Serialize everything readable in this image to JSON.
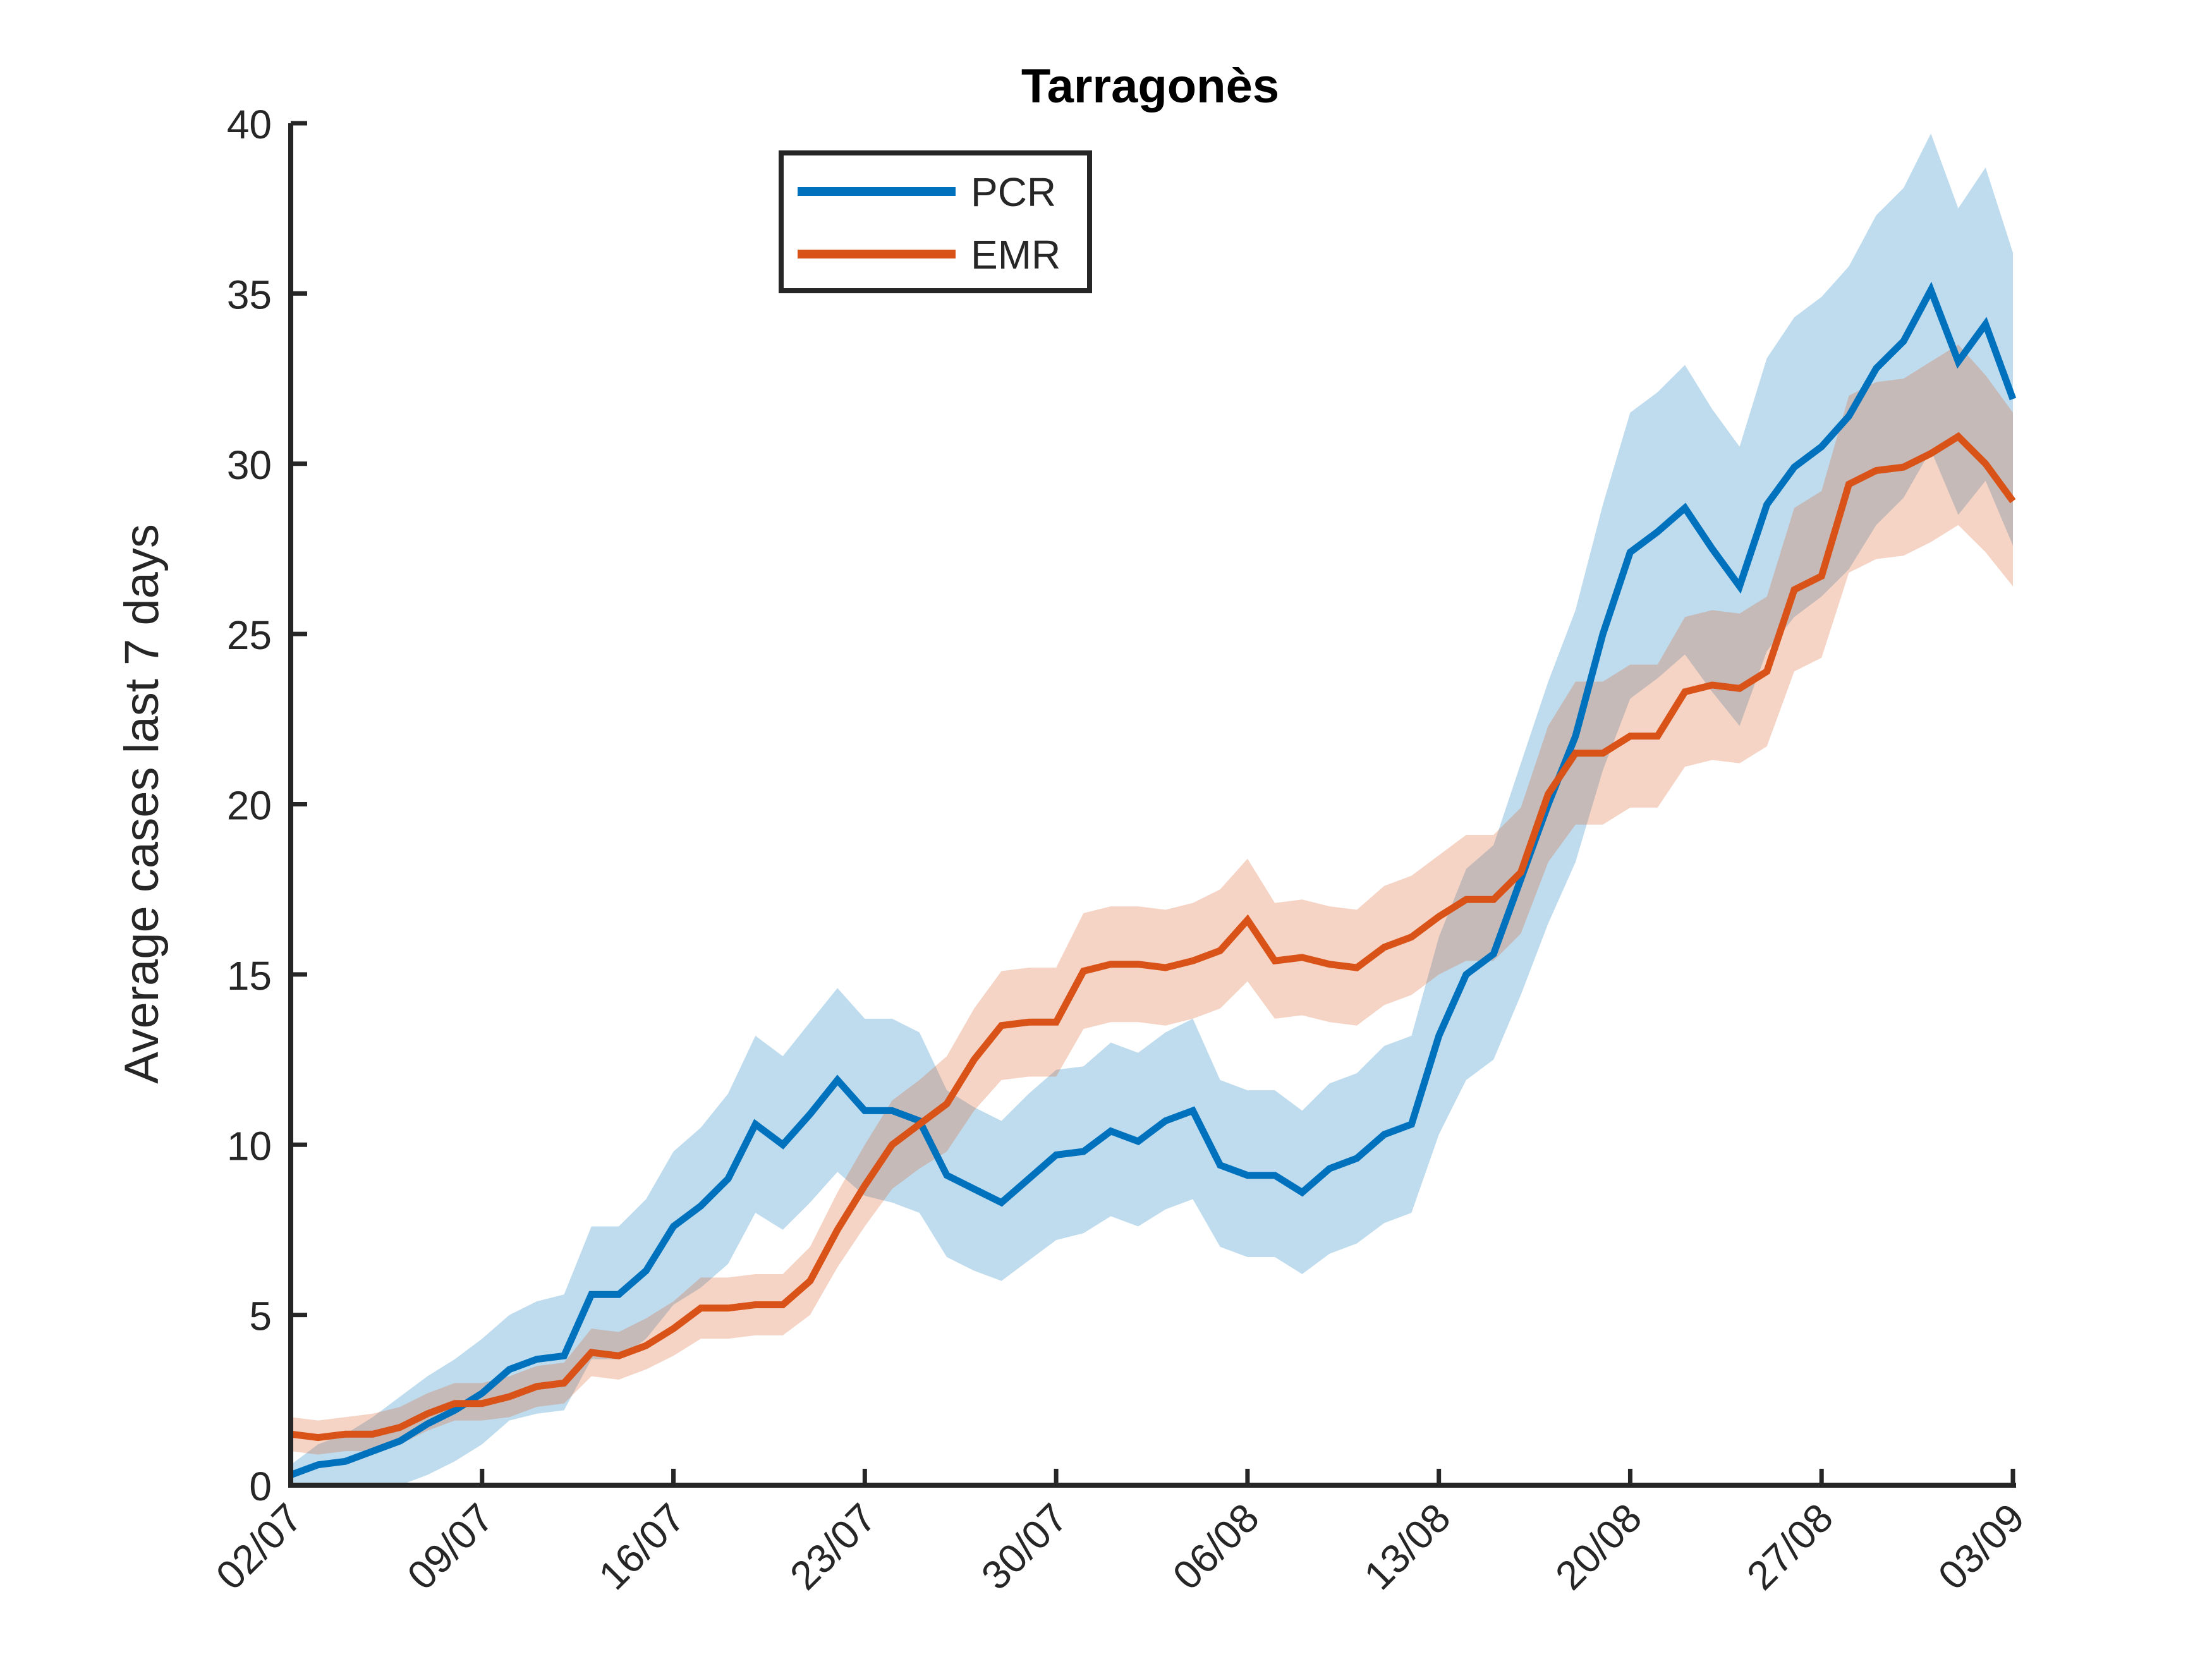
{
  "chart_data": {
    "type": "line",
    "title": "Tarragonès",
    "xlabel": "",
    "ylabel": "Average cases last 7 days",
    "ylim": [
      0,
      40
    ],
    "yticks": [
      0,
      5,
      10,
      15,
      20,
      25,
      30,
      35,
      40
    ],
    "xlim": [
      0,
      63
    ],
    "xticks": [
      {
        "pos": 0,
        "label": "02/07"
      },
      {
        "pos": 7,
        "label": "09/07"
      },
      {
        "pos": 14,
        "label": "16/07"
      },
      {
        "pos": 21,
        "label": "23/07"
      },
      {
        "pos": 28,
        "label": "30/07"
      },
      {
        "pos": 35,
        "label": "06/08"
      },
      {
        "pos": 42,
        "label": "13/08"
      },
      {
        "pos": 49,
        "label": "20/08"
      },
      {
        "pos": 56,
        "label": "27/08"
      },
      {
        "pos": 63,
        "label": "03/09"
      }
    ],
    "legend": {
      "position": "top-left",
      "entries": [
        "PCR",
        "EMR"
      ]
    },
    "series": [
      {
        "name": "PCR",
        "color": "#0072BD",
        "values": [
          0.3,
          0.6,
          0.7,
          1.0,
          1.3,
          1.8,
          2.2,
          2.7,
          3.4,
          3.7,
          3.8,
          5.6,
          5.6,
          6.3,
          7.6,
          8.2,
          9.0,
          10.6,
          10.0,
          10.9,
          11.9,
          11.0,
          11.0,
          10.7,
          9.1,
          8.7,
          8.3,
          9.0,
          9.7,
          9.8,
          10.4,
          10.1,
          10.7,
          11.0,
          9.4,
          9.1,
          9.1,
          8.6,
          9.3,
          9.6,
          10.3,
          10.6,
          13.2,
          15.0,
          15.6,
          17.8,
          20.0,
          22.0,
          25.0,
          27.4,
          28.0,
          28.7,
          27.5,
          26.4,
          28.8,
          29.9,
          30.5,
          31.4,
          32.8,
          33.6,
          35.1,
          33.0,
          34.1,
          31.9
        ],
        "lower": [
          0,
          0,
          0,
          0,
          0,
          0.3,
          0.7,
          1.2,
          1.9,
          2.1,
          2.2,
          3.7,
          3.7,
          4.3,
          5.3,
          5.8,
          6.5,
          8.0,
          7.5,
          8.3,
          9.2,
          8.5,
          8.3,
          8.0,
          6.7,
          6.3,
          6.0,
          6.6,
          7.2,
          7.4,
          7.9,
          7.6,
          8.1,
          8.4,
          7.0,
          6.7,
          6.7,
          6.2,
          6.8,
          7.1,
          7.7,
          8.0,
          10.3,
          11.9,
          12.5,
          14.4,
          16.5,
          18.3,
          21.0,
          23.1,
          23.7,
          24.4,
          23.3,
          22.3,
          24.5,
          25.5,
          26.1,
          26.9,
          28.2,
          29.0,
          30.4,
          28.5,
          29.5,
          27.6
        ],
        "upper": [
          0.6,
          1.2,
          1.5,
          2.0,
          2.6,
          3.2,
          3.7,
          4.3,
          5.0,
          5.4,
          5.6,
          7.6,
          7.6,
          8.4,
          9.8,
          10.5,
          11.5,
          13.2,
          12.6,
          13.6,
          14.6,
          13.7,
          13.7,
          13.3,
          11.6,
          11.1,
          10.7,
          11.5,
          12.2,
          12.3,
          13.0,
          12.7,
          13.3,
          13.7,
          11.9,
          11.6,
          11.6,
          11.0,
          11.8,
          12.1,
          12.9,
          13.2,
          16.1,
          18.1,
          18.8,
          21.2,
          23.6,
          25.7,
          28.8,
          31.5,
          32.1,
          32.9,
          31.6,
          30.5,
          33.1,
          34.3,
          34.9,
          35.8,
          37.3,
          38.1,
          39.7,
          37.5,
          38.7,
          36.2
        ]
      },
      {
        "name": "EMR",
        "color": "#D95319",
        "values": [
          1.5,
          1.4,
          1.5,
          1.5,
          1.7,
          2.1,
          2.4,
          2.4,
          2.6,
          2.9,
          3.0,
          3.9,
          3.8,
          4.1,
          4.6,
          5.2,
          5.2,
          5.3,
          5.3,
          6.0,
          7.5,
          8.8,
          10.0,
          10.6,
          11.2,
          12.5,
          13.5,
          13.6,
          13.6,
          15.1,
          15.3,
          15.3,
          15.2,
          15.4,
          15.7,
          16.6,
          15.4,
          15.5,
          15.3,
          15.2,
          15.8,
          16.1,
          16.7,
          17.2,
          17.2,
          18.0,
          20.3,
          21.5,
          21.5,
          22.0,
          22.0,
          23.3,
          23.5,
          23.4,
          23.9,
          26.3,
          26.7,
          29.4,
          29.8,
          29.9,
          30.3,
          30.8,
          30.0,
          28.9
        ],
        "lower": [
          1.0,
          0.9,
          1.0,
          1.0,
          1.2,
          1.6,
          1.9,
          1.9,
          2.0,
          2.3,
          2.4,
          3.2,
          3.1,
          3.4,
          3.8,
          4.3,
          4.3,
          4.4,
          4.4,
          5.0,
          6.4,
          7.6,
          8.7,
          9.3,
          9.8,
          11.0,
          11.9,
          12.0,
          12.0,
          13.4,
          13.6,
          13.6,
          13.5,
          13.7,
          14.0,
          14.8,
          13.7,
          13.8,
          13.6,
          13.5,
          14.1,
          14.4,
          15.0,
          15.4,
          15.4,
          16.2,
          18.3,
          19.4,
          19.4,
          19.9,
          19.9,
          21.1,
          21.3,
          21.2,
          21.7,
          23.9,
          24.3,
          26.8,
          27.2,
          27.3,
          27.7,
          28.2,
          27.4,
          26.4
        ],
        "upper": [
          2.0,
          1.9,
          2.0,
          2.1,
          2.3,
          2.7,
          3.0,
          3.0,
          3.2,
          3.5,
          3.6,
          4.6,
          4.5,
          4.9,
          5.4,
          6.1,
          6.1,
          6.2,
          6.2,
          7.0,
          8.6,
          10.0,
          11.3,
          11.9,
          12.6,
          14.0,
          15.1,
          15.2,
          15.2,
          16.8,
          17.0,
          17.0,
          16.9,
          17.1,
          17.5,
          18.4,
          17.1,
          17.2,
          17.0,
          16.9,
          17.6,
          17.9,
          18.5,
          19.1,
          19.1,
          19.9,
          22.3,
          23.6,
          23.6,
          24.1,
          24.1,
          25.5,
          25.7,
          25.6,
          26.1,
          28.7,
          29.2,
          32.0,
          32.4,
          32.5,
          33.0,
          33.5,
          32.6,
          31.5
        ]
      }
    ]
  }
}
